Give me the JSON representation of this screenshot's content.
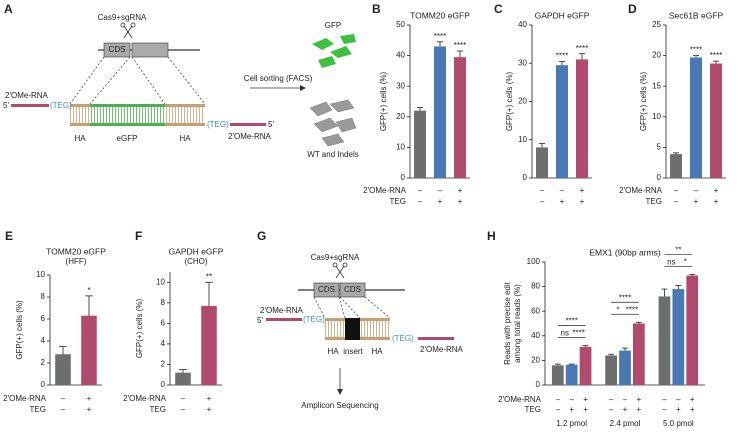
{
  "diagrams": {
    "a": {
      "panel": "A",
      "enzyme": "Cas9+sgRNA",
      "gene_box": "CDS",
      "donor_label_left": "2'OMe-RNA",
      "end_left": "5'",
      "linker_left": "(TEG)",
      "arm_left": "HA",
      "insert": "eGFP",
      "arm_right": "HA",
      "linker_right": "(TEG)",
      "end_right": "5'",
      "donor_label_right": "2'OMe-RNA",
      "arrow_label": "Cell sorting (FACS)",
      "positive": "GFP",
      "negative": "WT and Indels"
    },
    "g": {
      "panel": "G",
      "enzyme": "Cas9+sgRNA",
      "box_left": "CDS",
      "box_right": "CDS",
      "donor_label_left": "2'OMe-RNA",
      "end_left": "5'",
      "linker_left": "(TEG)",
      "arm_left": "HA",
      "insert": "insert",
      "arm_right": "HA",
      "linker_right": "(TEG)",
      "donor_label_right": "2'OMe-RNA",
      "output": "Amplicon Sequencing"
    }
  },
  "chart_data": [
    {
      "type": "bar",
      "panel": "B",
      "title": "TOMM20 eGFP",
      "ylabel": [
        "GFP(+) cells (%)"
      ],
      "values": [
        22,
        43,
        39.5
      ],
      "errors": [
        1,
        1.5,
        2
      ],
      "colors": [
        "#6d6e70",
        "#4a7ab5",
        "#b04a6e"
      ],
      "significance": [
        null,
        "****",
        "****"
      ],
      "ylim": [
        0,
        50
      ],
      "yticks": [
        0,
        10,
        20,
        30,
        40,
        50
      ],
      "conditions": [
        {
          "label": "2'OMe-RNA",
          "values": [
            "–",
            "–",
            "+"
          ]
        },
        {
          "label": "TEG",
          "values": [
            "–",
            "+",
            "+"
          ]
        }
      ]
    },
    {
      "type": "bar",
      "panel": "C",
      "title": "GAPDH eGFP",
      "ylabel": [
        "GFP(+) cells (%)"
      ],
      "values": [
        8,
        29.5,
        31
      ],
      "errors": [
        1,
        1,
        1.5
      ],
      "colors": [
        "#6d6e70",
        "#4a7ab5",
        "#b04a6e"
      ],
      "significance": [
        null,
        "****",
        "****"
      ],
      "ylim": [
        0,
        40
      ],
      "yticks": [
        0,
        10,
        20,
        30,
        40
      ],
      "conditions": [
        {
          "values": [
            "–",
            "–",
            "+"
          ]
        },
        {
          "values": [
            "–",
            "+",
            "+"
          ]
        }
      ]
    },
    {
      "type": "bar",
      "panel": "D",
      "title": "Sec61B eGFP",
      "ylabel": [
        "GFP(+) cells (%)"
      ],
      "values": [
        3.9,
        19.7,
        18.7
      ],
      "errors": [
        0.2,
        0.3,
        0.4
      ],
      "colors": [
        "#6d6e70",
        "#4a7ab5",
        "#b04a6e"
      ],
      "significance": [
        null,
        "****",
        "****"
      ],
      "ylim": [
        0,
        25
      ],
      "yticks": [
        0,
        5,
        10,
        15,
        20,
        25
      ],
      "conditions": [
        {
          "label": "2'OMe-RNA",
          "values": [
            "–",
            "–",
            "+"
          ]
        },
        {
          "label": "TEG",
          "values": [
            "–",
            "+",
            "+"
          ]
        }
      ]
    },
    {
      "type": "bar",
      "panel": "E",
      "title": "TOMM20 eGFP",
      "subtitle": "(HFF)",
      "ylabel": [
        "GFP(+) cells (%)"
      ],
      "values": [
        2.8,
        6.3
      ],
      "errors": [
        0.7,
        1.8
      ],
      "colors": [
        "#6d6e70",
        "#b04a6e"
      ],
      "significance": [
        null,
        "*"
      ],
      "ylim": [
        0,
        10
      ],
      "yticks": [
        0,
        2,
        4,
        6,
        8,
        10
      ],
      "conditions": [
        {
          "label": "2'OMe-RNA",
          "values": [
            "–",
            "+"
          ]
        },
        {
          "label": "TEG",
          "values": [
            "–",
            "+"
          ]
        }
      ]
    },
    {
      "type": "bar",
      "panel": "F",
      "title": "GAPDH eGFP",
      "subtitle": "(CHO)",
      "ylabel": [
        "GFP(+) cells (%)"
      ],
      "values": [
        1.2,
        7.7
      ],
      "errors": [
        0.3,
        2.3
      ],
      "colors": [
        "#6d6e70",
        "#b04a6e"
      ],
      "significance": [
        null,
        "**"
      ],
      "ylim": [
        0,
        11
      ],
      "yticks": [
        0,
        2,
        4,
        6,
        8,
        10
      ],
      "conditions": [
        {
          "label": "2'OMe-RNA",
          "values": [
            "–",
            "+"
          ]
        },
        {
          "label": "TEG",
          "values": [
            "–",
            "+"
          ]
        }
      ]
    },
    {
      "type": "grouped_bar",
      "panel": "H",
      "title": "EMX1 (90bp arms)",
      "ylabel": [
        "Reads with precise edit",
        "among total reads (%)"
      ],
      "categories": [
        "1.2 pmol",
        "2.4 pmol",
        "5.0 pmol"
      ],
      "series": [
        {
          "color": "#6d6e70",
          "values": [
            16,
            24,
            72
          ],
          "errors": [
            1,
            1,
            6
          ]
        },
        {
          "color": "#4a7ab5",
          "values": [
            16.5,
            28,
            78
          ],
          "errors": [
            0.5,
            2,
            3
          ]
        },
        {
          "color": "#b04a6e",
          "values": [
            31,
            50,
            89
          ],
          "errors": [
            1,
            1,
            1
          ]
        }
      ],
      "comparisons": [
        [
          "ns",
          "****",
          "****"
        ],
        [
          "*",
          "****",
          "****"
        ],
        [
          "ns",
          "*",
          "**"
        ]
      ],
      "ylim": [
        0,
        100
      ],
      "yticks": [
        0,
        20,
        40,
        60,
        80,
        100
      ],
      "conditions": [
        {
          "label": "2'OMe-RNA",
          "values": [
            "–",
            "–",
            "+",
            "–",
            "–",
            "+",
            "–",
            "–",
            "+"
          ]
        },
        {
          "label": "TEG",
          "values": [
            "–",
            "+",
            "+",
            "–",
            "+",
            "+",
            "–",
            "+",
            "+"
          ]
        }
      ]
    }
  ]
}
